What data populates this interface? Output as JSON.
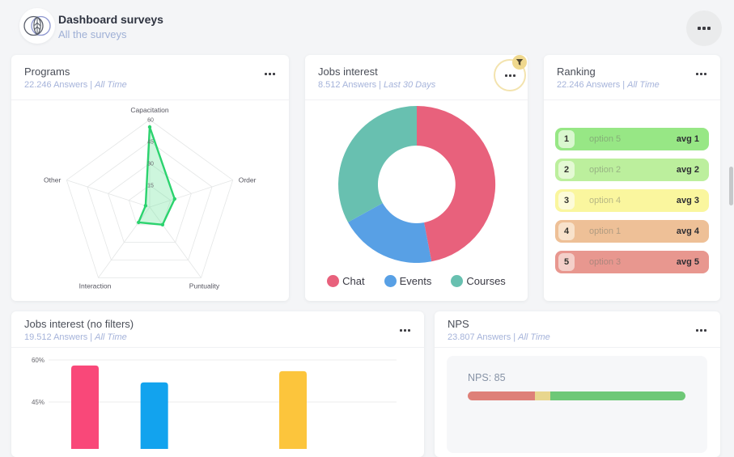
{
  "icons": {
    "logo": "leaf-icon",
    "header_menu": "more-dots-icon",
    "card_menu": "more-dots-icon",
    "filter": "funnel-icon"
  },
  "header": {
    "title": "Dashboard surveys",
    "subtitle": "All the surveys"
  },
  "cards": {
    "programs": {
      "title": "Programs",
      "answers": "22.246 Answers",
      "sep": "|",
      "period": "All Time"
    },
    "jobs_interest": {
      "title": "Jobs interest",
      "answers": "8.512 Answers",
      "sep": "|",
      "period": "Last 30 Days"
    },
    "ranking": {
      "title": "Ranking",
      "answers": "22.246 Answers",
      "sep": "|",
      "period": "All Time"
    },
    "jobs_no_filters": {
      "title": "Jobs interest (no filters)",
      "answers": "19.512 Answers",
      "sep": "|",
      "period": "All Time"
    },
    "nps": {
      "title": "NPS",
      "answers": "23.807 Answers",
      "sep": "|",
      "period": "All Time"
    }
  },
  "chart_data": [
    {
      "type": "radar",
      "title": "Programs",
      "axes": [
        "Capacitation",
        "Order",
        "Puntuality",
        "Interaction",
        "Other"
      ],
      "values": [
        55,
        18,
        15,
        13,
        3
      ],
      "max": 60,
      "ticks": [
        15,
        30,
        45,
        60
      ],
      "stroke": "#2bd36e",
      "fill": "rgba(98,226,148,0.32)",
      "grid": "#e4e6e6"
    },
    {
      "type": "pie",
      "title": "Jobs interest",
      "donut": true,
      "legend_position": "bottom",
      "labels": [
        "Chat",
        "Events",
        "Courses"
      ],
      "values": [
        47,
        20,
        33
      ],
      "colors": [
        "#e8617c",
        "#58a0e5",
        "#68c0b0"
      ]
    },
    {
      "type": "table",
      "title": "Ranking",
      "rows": [
        {
          "rank": "1",
          "option": "option 5",
          "avg": "avg 1",
          "color": "#97e785",
          "badge": "#d9f7cf"
        },
        {
          "rank": "2",
          "option": "option 2",
          "avg": "avg 2",
          "color": "#bcef9d",
          "badge": "#e4f9d4"
        },
        {
          "rank": "3",
          "option": "option 4",
          "avg": "avg 3",
          "color": "#faf69e",
          "badge": "#fdfbd9"
        },
        {
          "rank": "4",
          "option": "option 1",
          "avg": "avg 4",
          "color": "#eec097",
          "badge": "#f8e2cb"
        },
        {
          "rank": "5",
          "option": "option 3",
          "avg": "avg 5",
          "color": "#e8978f",
          "badge": "#f4cfc9"
        }
      ]
    },
    {
      "type": "bar",
      "title": "Jobs interest (no filters)",
      "unit": "%",
      "yticks": [
        60,
        45
      ],
      "slots": 4,
      "bars": [
        {
          "slot": 0,
          "value": 58,
          "color": "#f94879"
        },
        {
          "slot": 1,
          "value": 52,
          "color": "#12a3ee"
        },
        {
          "slot": 3,
          "value": 56,
          "color": "#fcc53c"
        }
      ],
      "grid": "#ececee"
    },
    {
      "type": "nps",
      "title": "NPS",
      "label": "NPS: 85",
      "value": 85,
      "segments": [
        {
          "color": "#de8078",
          "pct": 31
        },
        {
          "color": "#e8d68e",
          "pct": 7
        },
        {
          "color": "#6ec877",
          "pct": 62
        }
      ]
    }
  ]
}
